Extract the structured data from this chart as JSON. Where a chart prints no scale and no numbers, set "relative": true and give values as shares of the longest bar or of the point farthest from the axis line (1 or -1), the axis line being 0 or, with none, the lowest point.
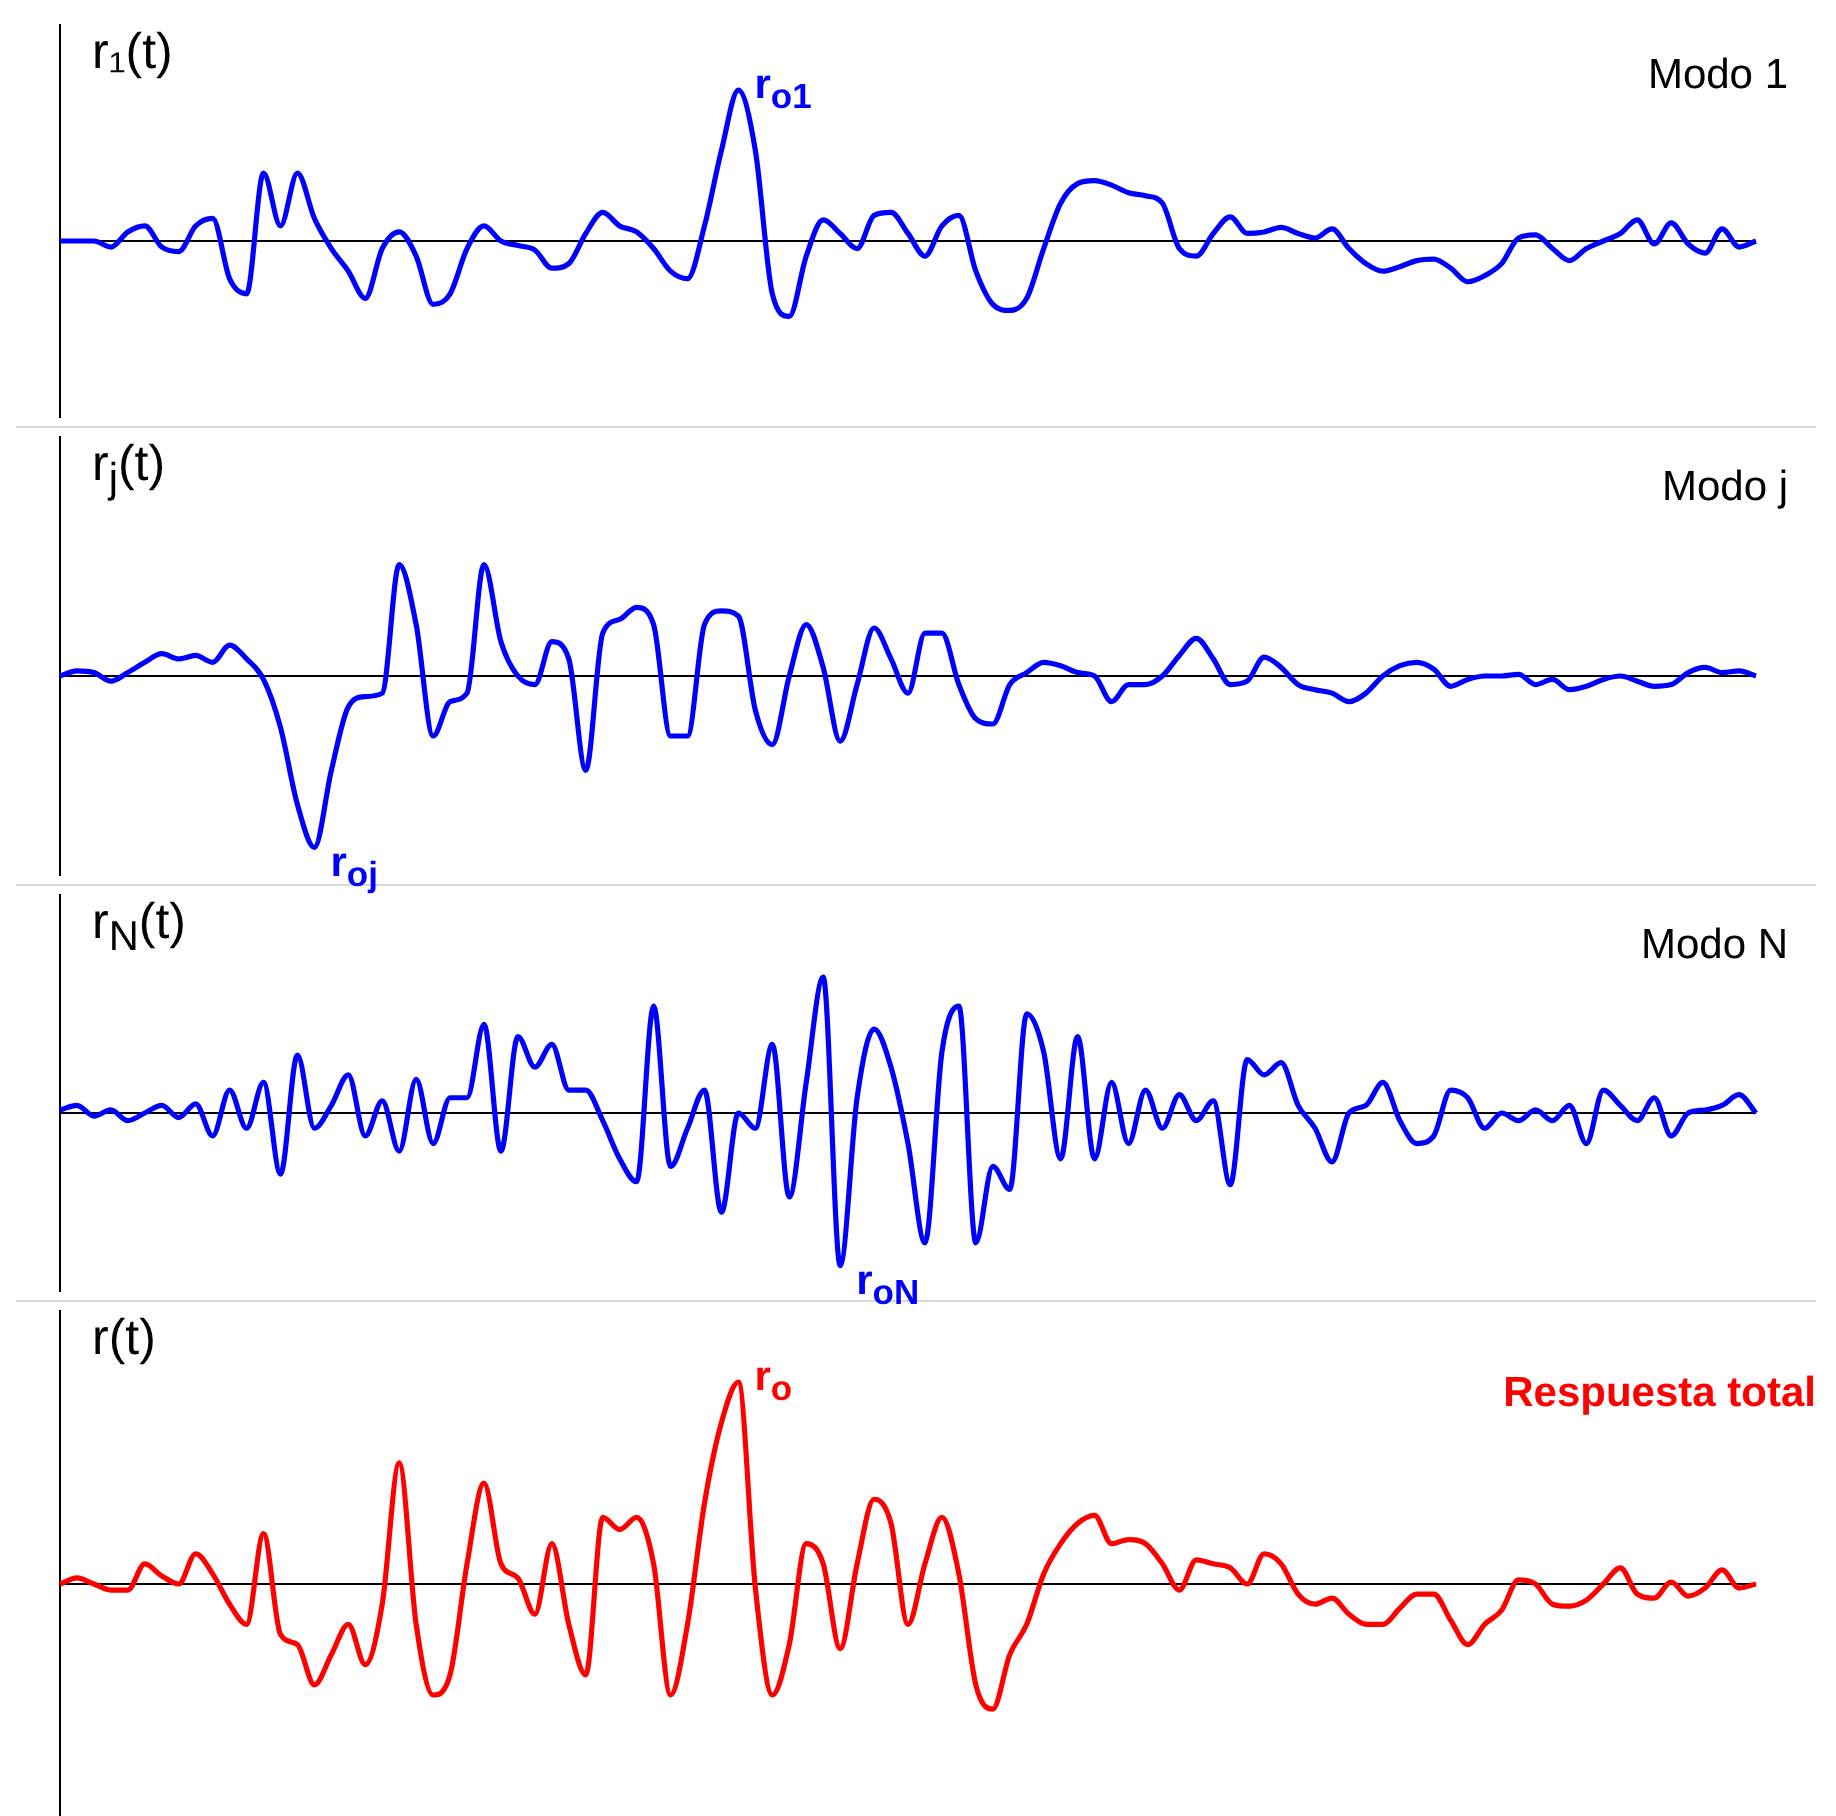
{
  "chart_data": [
    {
      "type": "line",
      "title": "Modo 1",
      "ylabel": "r₁(t)",
      "relative": true,
      "annotations": [
        "r$_{o1}$"
      ],
      "categories": [
        null,
        null,
        null,
        null,
        null,
        null,
        null,
        null,
        null,
        null,
        null,
        null,
        null,
        null,
        null,
        null,
        null,
        null,
        null,
        null,
        null,
        null,
        null,
        null,
        null,
        null,
        null,
        null,
        null,
        null,
        null,
        null,
        null,
        null,
        null,
        null,
        null,
        null,
        null,
        null,
        null,
        null,
        null,
        null,
        null,
        null,
        null,
        null,
        null,
        null,
        null,
        null,
        null,
        null,
        null,
        null,
        null,
        null,
        null,
        null,
        null,
        null,
        null,
        null,
        null,
        null,
        null,
        null,
        null,
        null,
        null,
        null,
        null,
        null,
        null,
        null,
        null,
        null,
        null,
        null,
        null,
        null,
        null,
        null,
        null,
        null,
        null,
        null,
        null,
        null,
        null,
        null,
        null,
        null,
        null,
        null,
        null,
        null,
        null,
        null,
        null
      ],
      "series": [
        {
          "color": "#0000ff",
          "values": [
            0,
            0,
            0,
            -0.04,
            0.06,
            0.1,
            -0.04,
            -0.07,
            0.1,
            0.15,
            -0.25,
            -0.35,
            0.45,
            0.1,
            0.45,
            0.15,
            -0.05,
            -0.2,
            -0.38,
            -0.05,
            0.06,
            -0.1,
            -0.42,
            -0.35,
            -0.05,
            0.1,
            0,
            -0.03,
            -0.06,
            -0.18,
            -0.15,
            0.05,
            0.19,
            0.1,
            0.06,
            -0.05,
            -0.2,
            -0.25,
            0.1,
            0.6,
            1,
            0.6,
            -0.35,
            -0.5,
            -0.1,
            0.14,
            0.05,
            -0.05,
            0.17,
            0.19,
            0.05,
            -0.1,
            0.1,
            0.17,
            -0.2,
            -0.42,
            -0.46,
            -0.38,
            -0.05,
            0.25,
            0.38,
            0.4,
            0.37,
            0.32,
            0.3,
            0.25,
            -0.05,
            -0.1,
            0.05,
            0.16,
            0.05,
            0.06,
            0.09,
            0.05,
            0.02,
            0.08,
            -0.05,
            -0.15,
            -0.2,
            -0.17,
            -0.13,
            -0.12,
            -0.18,
            -0.27,
            -0.23,
            -0.15,
            0.02,
            0.04,
            -0.05,
            -0.13,
            -0.05,
            0,
            0.05,
            0.14,
            -0.02,
            0.12,
            -0.02,
            -0.08,
            0.08,
            -0.04,
            0
          ]
        }
      ]
    },
    {
      "type": "line",
      "title": "Modo j",
      "ylabel": "r$_{j}$(t)",
      "relative": true,
      "annotations": [
        "r$_{oj}$"
      ],
      "categories": [
        null,
        null,
        null,
        null,
        null,
        null,
        null,
        null,
        null,
        null,
        null,
        null,
        null,
        null,
        null,
        null,
        null,
        null,
        null,
        null,
        null,
        null,
        null,
        null,
        null,
        null,
        null,
        null,
        null,
        null,
        null,
        null,
        null,
        null,
        null,
        null,
        null,
        null,
        null,
        null,
        null,
        null,
        null,
        null,
        null,
        null,
        null,
        null,
        null,
        null,
        null,
        null,
        null,
        null,
        null,
        null,
        null,
        null,
        null,
        null,
        null,
        null,
        null,
        null,
        null,
        null,
        null,
        null,
        null,
        null,
        null,
        null,
        null,
        null,
        null,
        null,
        null,
        null,
        null,
        null,
        null,
        null,
        null,
        null,
        null,
        null,
        null,
        null,
        null,
        null,
        null,
        null,
        null,
        null,
        null,
        null,
        null,
        null,
        null,
        null,
        null
      ],
      "series": [
        {
          "color": "#0000ff",
          "values": [
            0,
            0.03,
            0.02,
            -0.03,
            0.02,
            0.08,
            0.13,
            0.1,
            0.12,
            0.08,
            0.18,
            0.1,
            -0.02,
            -0.3,
            -0.75,
            -1,
            -0.55,
            -0.18,
            -0.12,
            -0.1,
            0.65,
            0.3,
            -0.35,
            -0.15,
            -0.1,
            0.65,
            0.2,
            0,
            -0.05,
            0.2,
            0.1,
            -0.55,
            0.25,
            0.33,
            0.4,
            0.3,
            -0.35,
            -0.35,
            0.3,
            0.38,
            0.35,
            -0.2,
            -0.4,
            0,
            0.3,
            0.05,
            -0.38,
            -0.05,
            0.28,
            0.1,
            -0.1,
            0.25,
            0.25,
            -0.05,
            -0.25,
            -0.28,
            -0.05,
            0.02,
            0.08,
            0.06,
            0.02,
            0,
            -0.15,
            -0.05,
            -0.05,
            0,
            0.12,
            0.22,
            0.1,
            -0.05,
            -0.03,
            0.11,
            0.05,
            -0.05,
            -0.08,
            -0.1,
            -0.15,
            -0.1,
            0,
            0.06,
            0.08,
            0.04,
            -0.06,
            -0.02,
            0,
            0,
            0.01,
            -0.05,
            -0.02,
            -0.08,
            -0.06,
            -0.02,
            0,
            -0.03,
            -0.06,
            -0.05,
            0.02,
            0.05,
            0.02,
            0.03,
            0
          ]
        }
      ]
    },
    {
      "type": "line",
      "title": "Modo N",
      "ylabel": "r$_{N}$(t)",
      "relative": true,
      "annotations": [
        "r$_{oN}$"
      ],
      "categories": [
        null,
        null,
        null,
        null,
        null,
        null,
        null,
        null,
        null,
        null,
        null,
        null,
        null,
        null,
        null,
        null,
        null,
        null,
        null,
        null,
        null,
        null,
        null,
        null,
        null,
        null,
        null,
        null,
        null,
        null,
        null,
        null,
        null,
        null,
        null,
        null,
        null,
        null,
        null,
        null,
        null,
        null,
        null,
        null,
        null,
        null,
        null,
        null,
        null,
        null,
        null,
        null,
        null,
        null,
        null,
        null,
        null,
        null,
        null,
        null,
        null,
        null,
        null,
        null,
        null,
        null,
        null,
        null,
        null,
        null,
        null,
        null,
        null,
        null,
        null,
        null,
        null,
        null,
        null,
        null,
        null,
        null,
        null,
        null,
        null,
        null,
        null,
        null,
        null,
        null,
        null,
        null,
        null,
        null,
        null,
        null,
        null,
        null,
        null,
        null,
        null
      ],
      "series": [
        {
          "color": "#0000ff",
          "values": [
            0.02,
            0.05,
            -0.02,
            0.02,
            -0.05,
            0,
            0.05,
            -0.03,
            0.06,
            -0.15,
            0.15,
            -0.1,
            0.2,
            -0.4,
            0.38,
            -0.1,
            0.05,
            0.25,
            -0.15,
            0.08,
            -0.25,
            0.22,
            -0.2,
            0.1,
            0.1,
            0.58,
            -0.25,
            0.5,
            0.3,
            0.45,
            0.15,
            0.15,
            -0.05,
            -0.3,
            -0.45,
            0.7,
            -0.35,
            -0.1,
            0.15,
            -0.65,
            0,
            -0.1,
            0.45,
            -0.55,
            0.2,
            0.89,
            -1,
            0.1,
            0.55,
            0.3,
            -0.2,
            -0.85,
            0.4,
            0.7,
            -0.85,
            -0.35,
            -0.5,
            0.65,
            0.4,
            -0.3,
            0.5,
            -0.3,
            0.2,
            -0.2,
            0.15,
            -0.1,
            0.12,
            -0.05,
            0.08,
            -0.47,
            0.35,
            0.25,
            0.33,
            0.05,
            -0.1,
            -0.32,
            0,
            0.05,
            0.2,
            -0.05,
            -0.2,
            -0.15,
            0.15,
            0.1,
            -0.1,
            0,
            -0.05,
            0.02,
            -0.05,
            0.05,
            -0.2,
            0.15,
            0.05,
            -0.05,
            0.1,
            -0.15,
            0,
            0.02,
            0.05,
            0.12,
            0
          ]
        }
      ]
    },
    {
      "type": "line",
      "ylabel": "r(t)",
      "relative": true,
      "annotations": [
        "r$_{o}$"
      ],
      "categories": [
        null,
        null,
        null,
        null,
        null,
        null,
        null,
        null,
        null,
        null,
        null,
        null,
        null,
        null,
        null,
        null,
        null,
        null,
        null,
        null,
        null,
        null,
        null,
        null,
        null,
        null,
        null,
        null,
        null,
        null,
        null,
        null,
        null,
        null,
        null,
        null,
        null,
        null,
        null,
        null,
        null,
        null,
        null,
        null,
        null,
        null,
        null,
        null,
        null,
        null,
        null,
        null,
        null,
        null,
        null,
        null,
        null,
        null,
        null,
        null,
        null,
        null,
        null,
        null,
        null,
        null,
        null,
        null,
        null,
        null,
        null,
        null,
        null,
        null,
        null,
        null,
        null,
        null,
        null,
        null,
        null,
        null,
        null,
        null,
        null,
        null,
        null,
        null,
        null,
        null,
        null,
        null,
        null,
        null,
        null,
        null,
        null,
        null,
        null,
        null,
        null
      ],
      "series": [
        {
          "name": "Respuesta total",
          "color": "#ff0000",
          "values": [
            0,
            0.03,
            0,
            -0.03,
            -0.03,
            0.1,
            0.04,
            0,
            0.15,
            0.05,
            -0.1,
            -0.2,
            0.25,
            -0.25,
            -0.3,
            -0.5,
            -0.35,
            -0.2,
            -0.4,
            -0.1,
            0.6,
            -0.2,
            -0.55,
            -0.45,
            0.1,
            0.5,
            0.1,
            0.03,
            -0.15,
            0.2,
            -0.2,
            -0.45,
            0.33,
            0.27,
            0.33,
            0.1,
            -0.55,
            -0.2,
            0.4,
            0.8,
            1,
            -0.02,
            -0.55,
            -0.3,
            0.2,
            0.1,
            -0.32,
            0.1,
            0.42,
            0.3,
            -0.2,
            0.1,
            0.33,
            0.05,
            -0.5,
            -0.62,
            -0.35,
            -0.2,
            0.05,
            0.2,
            0.3,
            0.34,
            0.2,
            0.22,
            0.2,
            0.1,
            -0.03,
            0.12,
            0.1,
            0.08,
            0,
            0.15,
            0.1,
            -0.05,
            -0.1,
            -0.07,
            -0.15,
            -0.2,
            -0.2,
            -0.12,
            -0.05,
            -0.05,
            -0.18,
            -0.3,
            -0.2,
            -0.13,
            0.02,
            0,
            -0.1,
            -0.11,
            -0.08,
            0,
            0.08,
            -0.05,
            -0.07,
            0.01,
            -0.06,
            -0.02,
            0.07,
            -0.02,
            0
          ]
        }
      ]
    }
  ]
}
